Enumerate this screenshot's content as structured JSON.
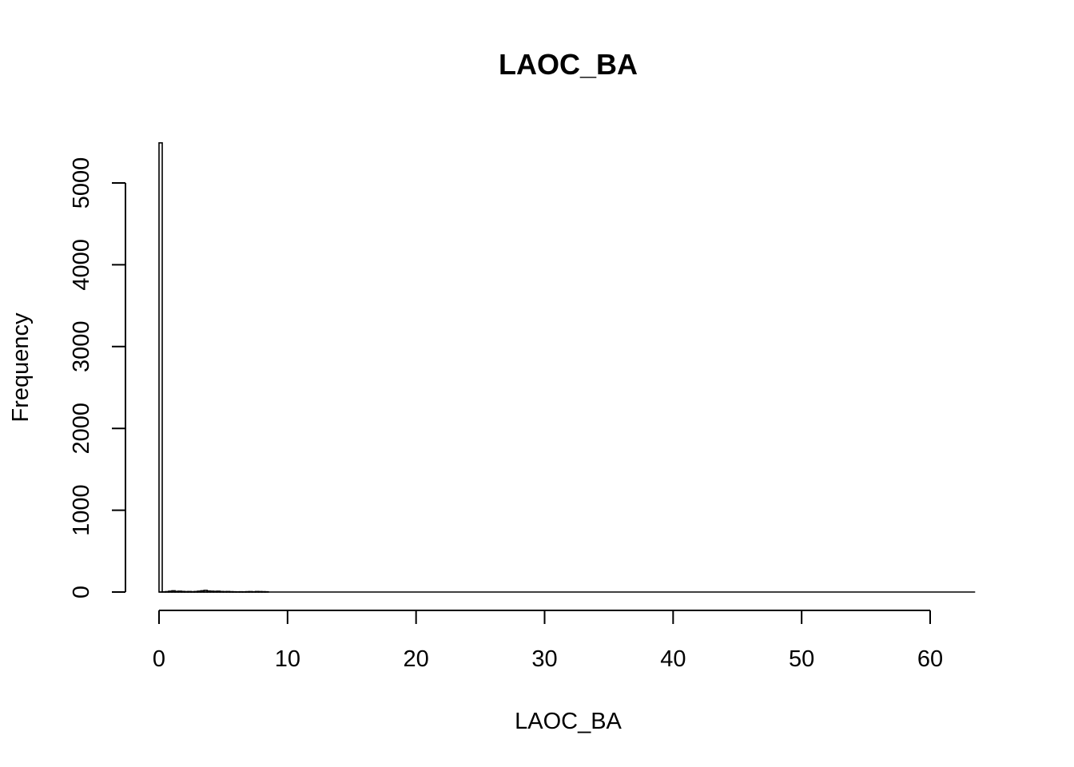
{
  "chart_data": {
    "type": "bar",
    "title": "LAOC_BA",
    "xlabel": "LAOC_BA",
    "ylabel": "Frequency",
    "x_ticks": [
      0,
      10,
      20,
      30,
      40,
      50,
      60
    ],
    "y_ticks": [
      0,
      1000,
      2000,
      3000,
      4000,
      5000
    ],
    "xlim": [
      0,
      63.5
    ],
    "ylim": [
      0,
      5500
    ],
    "bin_width": 0.25,
    "bins": [
      {
        "x0": 0.0,
        "x1": 0.25,
        "count": 5490
      },
      {
        "x0": 0.25,
        "x1": 0.5,
        "count": 2
      },
      {
        "x0": 0.5,
        "x1": 0.75,
        "count": 5
      },
      {
        "x0": 0.75,
        "x1": 1.0,
        "count": 10
      },
      {
        "x0": 1.0,
        "x1": 1.25,
        "count": 15
      },
      {
        "x0": 1.25,
        "x1": 1.5,
        "count": 8
      },
      {
        "x0": 1.5,
        "x1": 1.75,
        "count": 10
      },
      {
        "x0": 1.75,
        "x1": 2.0,
        "count": 7
      },
      {
        "x0": 2.0,
        "x1": 2.25,
        "count": 5
      },
      {
        "x0": 2.25,
        "x1": 2.5,
        "count": 6
      },
      {
        "x0": 2.5,
        "x1": 2.75,
        "count": 4
      },
      {
        "x0": 2.75,
        "x1": 3.0,
        "count": 6
      },
      {
        "x0": 3.0,
        "x1": 3.25,
        "count": 10
      },
      {
        "x0": 3.25,
        "x1": 3.5,
        "count": 15
      },
      {
        "x0": 3.5,
        "x1": 3.75,
        "count": 20
      },
      {
        "x0": 3.75,
        "x1": 4.0,
        "count": 12
      },
      {
        "x0": 4.0,
        "x1": 4.25,
        "count": 10
      },
      {
        "x0": 4.25,
        "x1": 4.5,
        "count": 8
      },
      {
        "x0": 4.5,
        "x1": 4.75,
        "count": 10
      },
      {
        "x0": 4.75,
        "x1": 5.0,
        "count": 6
      },
      {
        "x0": 5.0,
        "x1": 5.25,
        "count": 5
      },
      {
        "x0": 5.25,
        "x1": 5.5,
        "count": 6
      },
      {
        "x0": 5.5,
        "x1": 5.75,
        "count": 4
      },
      {
        "x0": 5.75,
        "x1": 6.0,
        "count": 3
      },
      {
        "x0": 6.0,
        "x1": 6.25,
        "count": 2
      },
      {
        "x0": 6.25,
        "x1": 6.5,
        "count": 3
      },
      {
        "x0": 6.5,
        "x1": 6.75,
        "count": 2
      },
      {
        "x0": 6.75,
        "x1": 7.0,
        "count": 4
      },
      {
        "x0": 7.0,
        "x1": 7.25,
        "count": 5
      },
      {
        "x0": 7.25,
        "x1": 7.5,
        "count": 3
      },
      {
        "x0": 7.5,
        "x1": 7.75,
        "count": 6
      },
      {
        "x0": 7.75,
        "x1": 8.0,
        "count": 5
      },
      {
        "x0": 8.0,
        "x1": 8.25,
        "count": 4
      },
      {
        "x0": 8.25,
        "x1": 8.5,
        "count": 3
      }
    ],
    "x_range_covered": [
      0,
      63.5
    ],
    "grid": false,
    "legend": "none"
  }
}
